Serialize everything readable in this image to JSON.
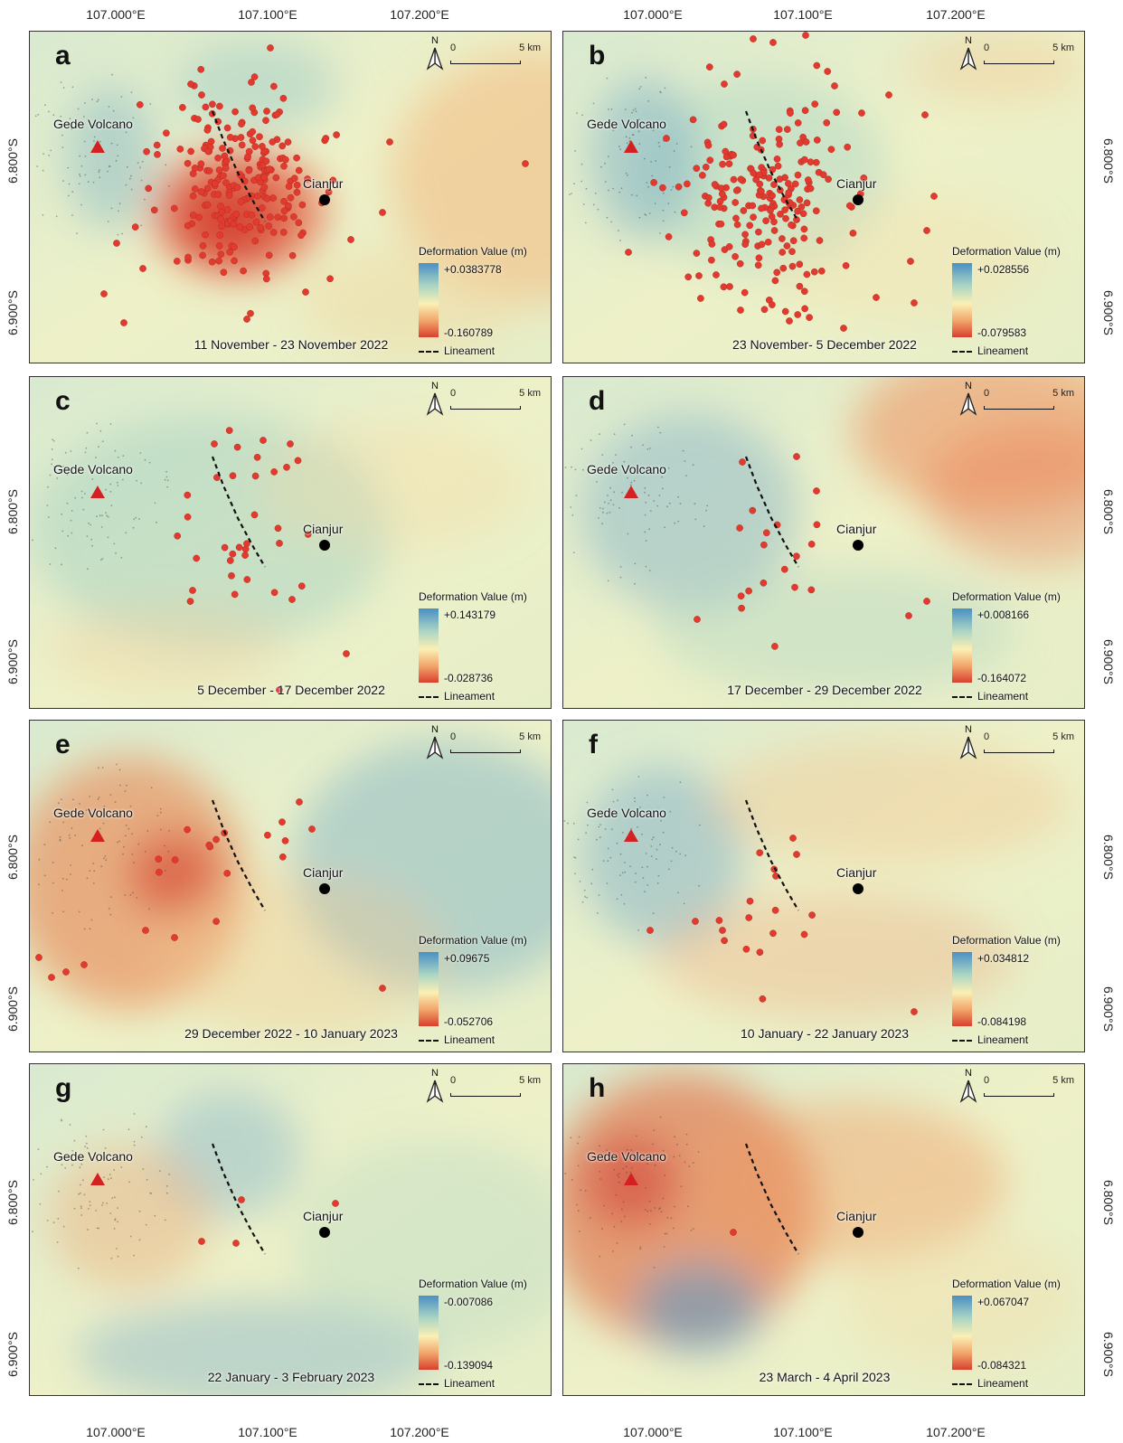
{
  "axes": {
    "lon_labels": [
      "107.000°E",
      "107.100°E",
      "107.200°E"
    ],
    "lat_labels": [
      "6.800°S",
      "6.900°S"
    ]
  },
  "common": {
    "volcano": "Gede Volcano",
    "city": "Cianjur",
    "north": "N",
    "scale_zero": "0",
    "scale_max": "5 km",
    "legend_title": "Deformation Value (m)",
    "lineament": "Lineament"
  },
  "colors": {
    "quake": "#e23a2e",
    "volcano": "#d42020",
    "city": "#000000",
    "ramp_high": "#4a8fc4",
    "ramp_mid": "#fbf0b4",
    "ramp_low": "#d8402e"
  },
  "panels": [
    {
      "id": "a",
      "label": "a",
      "period": "11 November - 23 November 2022",
      "max": "+0.0383778",
      "min": "-0.160789"
    },
    {
      "id": "b",
      "label": "b",
      "period": "23 November- 5 December 2022",
      "max": "+0.028556",
      "min": "-0.079583"
    },
    {
      "id": "c",
      "label": "c",
      "period": "5 December - 17 December 2022",
      "max": "+0.143179",
      "min": "-0.028736"
    },
    {
      "id": "d",
      "label": "d",
      "period": "17 December - 29 December 2022",
      "max": "+0.008166",
      "min": "-0.164072"
    },
    {
      "id": "e",
      "label": "e",
      "period": "29 December 2022 - 10 January 2023",
      "max": "+0.09675",
      "min": "-0.052706"
    },
    {
      "id": "f",
      "label": "f",
      "period": "10 January - 22 January 2023",
      "max": "+0.034812",
      "min": "-0.084198"
    },
    {
      "id": "g",
      "label": "g",
      "period": "22 January - 3 February 2023",
      "max": "-0.007086",
      "min": "-0.139094"
    },
    {
      "id": "h",
      "label": "h",
      "period": "23 March - 4 April 2023",
      "max": "+0.067047",
      "min": "-0.084321"
    }
  ]
}
